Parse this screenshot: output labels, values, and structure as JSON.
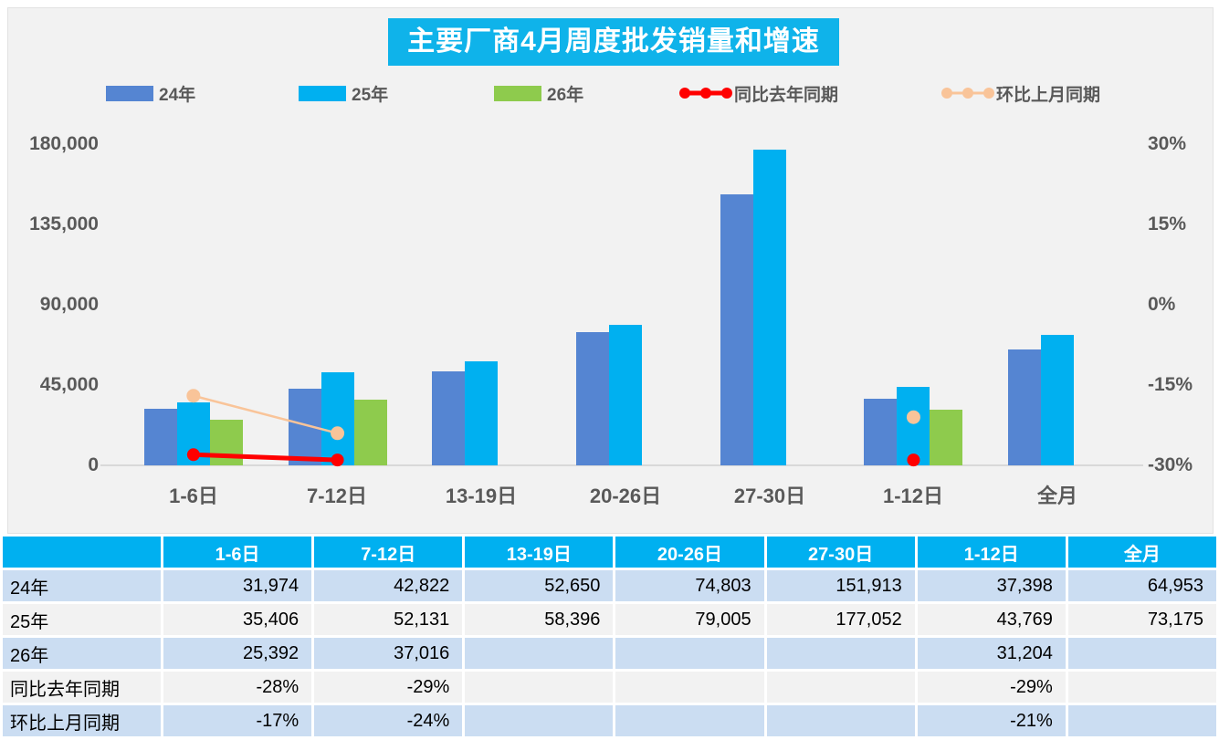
{
  "title": "主要厂商4月周度批发销量和增速",
  "legend": [
    {
      "label": "24年",
      "type": "bar",
      "color": "#5585D2"
    },
    {
      "label": "25年",
      "type": "bar",
      "color": "#00B0F0"
    },
    {
      "label": "26年",
      "type": "bar",
      "color": "#8ECB4D"
    },
    {
      "label": "同比去年同期",
      "type": "line",
      "color": "#FF0000"
    },
    {
      "label": "环比上月同期",
      "type": "line",
      "color": "#F9C499"
    }
  ],
  "chart_data": {
    "type": "bar",
    "title": "主要厂商4月周度批发销量和增速",
    "categories": [
      "1-6日",
      "7-12日",
      "13-19日",
      "20-26日",
      "27-30日",
      "1-12日",
      "全月"
    ],
    "bar_series": [
      {
        "name": "24年",
        "color": "#5585D2",
        "values": [
          31974,
          42822,
          52650,
          74803,
          151913,
          37398,
          64953
        ]
      },
      {
        "name": "25年",
        "color": "#00B0F0",
        "values": [
          35406,
          52131,
          58396,
          79005,
          177052,
          43769,
          73175
        ]
      },
      {
        "name": "26年",
        "color": "#8ECB4D",
        "values": [
          25392,
          37016,
          null,
          null,
          null,
          31204,
          null
        ]
      }
    ],
    "line_series": [
      {
        "name": "同比去年同期",
        "color": "#FF0000",
        "values": [
          -28,
          -29,
          null,
          null,
          null,
          -29,
          null
        ]
      },
      {
        "name": "环比上月同期",
        "color": "#F9C499",
        "values": [
          -17,
          -24,
          null,
          null,
          null,
          -21,
          null
        ]
      }
    ],
    "left_axis": {
      "min": 0,
      "max": 180000,
      "ticks": [
        "180,000",
        "135,000",
        "90,000",
        "45,000",
        "0"
      ]
    },
    "right_axis": {
      "min": -30,
      "max": 30,
      "ticks": [
        "30%",
        "15%",
        "0%",
        "-15%",
        "-30%"
      ]
    },
    "grid": false,
    "legend_position": "top"
  },
  "table": {
    "corner": "",
    "columns": [
      "1-6日",
      "7-12日",
      "13-19日",
      "20-26日",
      "27-30日",
      "1-12日",
      "全月"
    ],
    "rows": [
      {
        "label": "24年",
        "cells": [
          "31,974",
          "42,822",
          "52,650",
          "74,803",
          "151,913",
          "37,398",
          "64,953"
        ]
      },
      {
        "label": "25年",
        "cells": [
          "35,406",
          "52,131",
          "58,396",
          "79,005",
          "177,052",
          "43,769",
          "73,175"
        ]
      },
      {
        "label": "26年",
        "cells": [
          "25,392",
          "37,016",
          "",
          "",
          "",
          "31,204",
          ""
        ]
      },
      {
        "label": "同比去年同期",
        "cells": [
          "-28%",
          "-29%",
          "",
          "",
          "",
          "-29%",
          ""
        ]
      },
      {
        "label": "环比上月同期",
        "cells": [
          "-17%",
          "-24%",
          "",
          "",
          "",
          "-21%",
          ""
        ]
      }
    ]
  },
  "colors": {
    "panel_background": "#F2F2F2",
    "title_background": "#0FB3EA",
    "header_background": "#00B0F0",
    "row_blue": "#CBDDF2",
    "row_gray": "#F2F2F2",
    "axis_text": "#595959",
    "axis_line": "#D9D9D9"
  }
}
